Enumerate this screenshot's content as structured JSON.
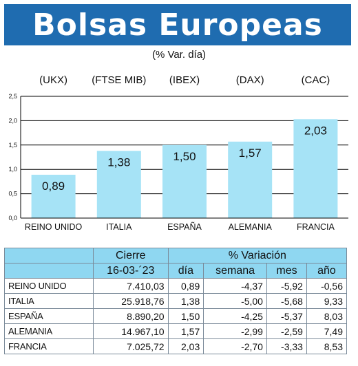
{
  "header": {
    "title": "Bolsas Europeas",
    "subtitle": "(% Var. día)"
  },
  "chart_data": {
    "type": "bar",
    "indices": [
      "(UKX)",
      "(FTSE MIB)",
      "(IBEX)",
      "(DAX)",
      "(CAC)"
    ],
    "categories": [
      "REINO UNIDO",
      "ITALIA",
      "ESPAÑA",
      "ALEMANIA",
      "FRANCIA"
    ],
    "values": [
      0.89,
      1.38,
      1.5,
      1.57,
      2.03
    ],
    "value_labels": [
      "0,89",
      "1,38",
      "1,50",
      "1,57",
      "2,03"
    ],
    "yticks": [
      "0,0",
      "0,5",
      "1,0",
      "1,5",
      "2,0",
      "2,5"
    ],
    "ylim": [
      0,
      2.5
    ],
    "grid": true,
    "bar_color": "#a6e3f6",
    "grid_color": "#000000"
  },
  "table": {
    "header1": {
      "cierre": "Cierre",
      "variacion": "% Variación"
    },
    "header2": {
      "date": "16-03-´23",
      "dia": "día",
      "semana": "semana",
      "mes": "mes",
      "ano": "año"
    },
    "rows": [
      {
        "name": "REINO UNIDO",
        "cierre": "7.410,03",
        "dia": "0,89",
        "semana": "-4,37",
        "mes": "-5,92",
        "ano": "-0,56"
      },
      {
        "name": "ITALIA",
        "cierre": "25.918,76",
        "dia": "1,38",
        "semana": "-5,00",
        "mes": "-5,68",
        "ano": "9,33"
      },
      {
        "name": "ESPAÑA",
        "cierre": "8.890,20",
        "dia": "1,50",
        "semana": "-4,25",
        "mes": "-5,37",
        "ano": "8,03"
      },
      {
        "name": "ALEMANIA",
        "cierre": "14.967,10",
        "dia": "1,57",
        "semana": "-2,99",
        "mes": "-2,59",
        "ano": "7,49"
      },
      {
        "name": "FRANCIA",
        "cierre": "7.025,72",
        "dia": "2,03",
        "semana": "-2,70",
        "mes": "-3,33",
        "ano": "8,53"
      }
    ]
  },
  "colors": {
    "banner": "#1f6cb0",
    "table_header": "#8fd7f1"
  }
}
